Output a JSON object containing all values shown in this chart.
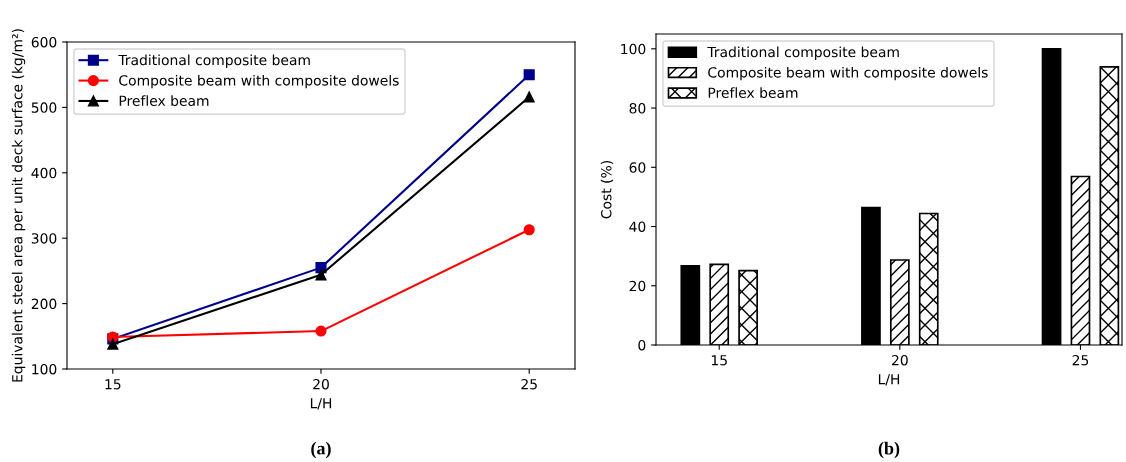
{
  "chart_data": [
    {
      "type": "line",
      "xlabel": "L/H",
      "ylabel": "Equivalent steel area per unit deck surface (kg/m²)",
      "x": [
        15,
        20,
        25
      ],
      "xlim": [
        13.9,
        26.1
      ],
      "xticks": [
        15,
        20,
        25
      ],
      "ylim": [
        100,
        600
      ],
      "yticks": [
        100,
        200,
        300,
        400,
        500,
        600
      ],
      "legend": "top left",
      "grid": false,
      "annotations": [
        "(a)"
      ],
      "series": [
        {
          "name": "Traditional composite beam",
          "color": "#00008b",
          "marker": "square",
          "values": [
            146,
            255,
            550
          ]
        },
        {
          "name": "Composite beam with composite dowels",
          "color": "#ff0000",
          "marker": "circle",
          "values": [
            149,
            158,
            313
          ]
        },
        {
          "name": "Preflex beam",
          "color": "#000000",
          "marker": "triangle",
          "values": [
            138,
            244,
            516
          ]
        }
      ]
    },
    {
      "type": "bar",
      "xlabel": "L/H",
      "ylabel": "Cost (%)",
      "categories": [
        "15",
        "20",
        "25"
      ],
      "ylim": [
        0,
        105
      ],
      "yticks": [
        0,
        20,
        40,
        60,
        80,
        100
      ],
      "legend": "top left",
      "grid": false,
      "annotations": [
        "(b)"
      ],
      "series": [
        {
          "name": "Traditional composite beam",
          "color": "#000000",
          "values": [
            26.7,
            46.4,
            100
          ]
        },
        {
          "name": "Composite beam with composite dowels",
          "color": "#000000",
          "values": [
            27.2,
            28.7,
            56.9
          ]
        },
        {
          "name": "Preflex beam",
          "color": "#000000",
          "values": [
            25.1,
            44.4,
            93.9
          ]
        }
      ]
    }
  ]
}
